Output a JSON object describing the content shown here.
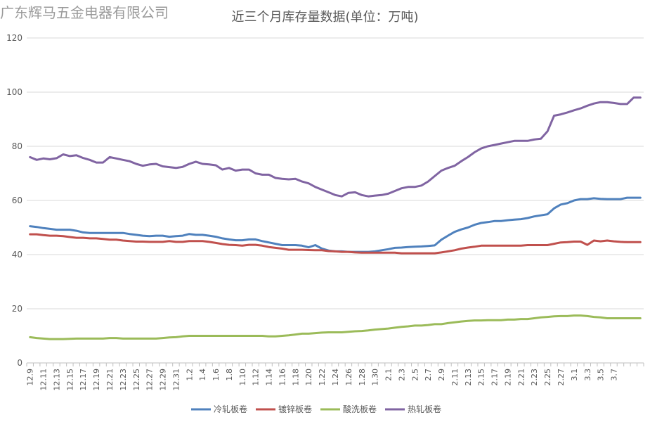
{
  "watermark": "广东辉马五金电器有限公司",
  "chart_data": {
    "type": "line",
    "title": "近三个月库存量数据(单位：万吨)",
    "xlabel": "",
    "ylabel": "",
    "ylim": [
      0,
      120
    ],
    "yticks": [
      0,
      20,
      40,
      60,
      80,
      100,
      120
    ],
    "grid": true,
    "legend": "bottom",
    "x_tick_labels": [
      "12.9",
      "12.11",
      "12.13",
      "12.15",
      "12.17",
      "12.19",
      "12.21",
      "12.23",
      "12.25",
      "12.27",
      "12.29",
      "12.31",
      "1.2",
      "1.4",
      "1.6",
      "1.8",
      "1.10",
      "1.12",
      "1.14",
      "1.16",
      "1.18",
      "1.20",
      "1.22",
      "1.24",
      "1.26",
      "1.28",
      "1.30",
      "2.1",
      "2.3",
      "2.5",
      "2.7",
      "2.9",
      "2.11",
      "2.13",
      "2.15",
      "2.17",
      "2.19",
      "2.21",
      "2.23",
      "2.25",
      "2.27",
      "3.1",
      "3.3",
      "3.5",
      "3.7"
    ],
    "series": [
      {
        "name": "冷轧板卷",
        "color": "#4f81bd",
        "values": [
          50.5,
          50.2,
          49.8,
          49.5,
          49.2,
          49.2,
          49.2,
          48.8,
          48.2,
          48.0,
          48.0,
          48.0,
          48.0,
          48.0,
          48.0,
          47.6,
          47.3,
          47.0,
          46.8,
          47.0,
          47.0,
          46.6,
          46.8,
          47.0,
          47.6,
          47.3,
          47.3,
          47.0,
          46.6,
          46.0,
          45.6,
          45.3,
          45.3,
          45.6,
          45.6,
          45.0,
          44.5,
          44.0,
          43.5,
          43.5,
          43.5,
          43.3,
          42.7,
          43.5,
          42.2,
          41.5,
          41.2,
          41.2,
          41.0,
          41.0,
          41.0,
          41.0,
          41.2,
          41.6,
          42.0,
          42.5,
          42.6,
          42.8,
          42.9,
          43.0,
          43.2,
          43.4,
          45.5,
          47.0,
          48.4,
          49.3,
          50.0,
          51.0,
          51.7,
          52.0,
          52.4,
          52.4,
          52.7,
          52.9,
          53.1,
          53.5,
          54.1,
          54.5,
          54.9,
          57.1,
          58.5,
          59.0,
          60.0,
          60.5,
          60.5,
          60.8,
          60.6,
          60.5,
          60.5,
          60.5,
          61.0,
          61.0,
          61.0
        ]
      },
      {
        "name": "镀锌板卷",
        "color": "#c0504d",
        "values": [
          47.5,
          47.5,
          47.2,
          47.0,
          47.0,
          46.8,
          46.5,
          46.2,
          46.2,
          46.0,
          46.0,
          45.8,
          45.5,
          45.5,
          45.2,
          45.0,
          44.8,
          44.8,
          44.7,
          44.7,
          44.7,
          45.0,
          44.7,
          44.7,
          45.0,
          45.0,
          45.0,
          44.7,
          44.3,
          43.9,
          43.6,
          43.5,
          43.3,
          43.6,
          43.6,
          43.3,
          42.8,
          42.5,
          42.2,
          41.8,
          41.8,
          41.8,
          41.7,
          41.6,
          41.6,
          41.3,
          41.2,
          41.0,
          41.0,
          40.8,
          40.7,
          40.7,
          40.7,
          40.7,
          40.7,
          40.7,
          40.5,
          40.5,
          40.5,
          40.5,
          40.5,
          40.5,
          40.8,
          41.2,
          41.6,
          42.2,
          42.6,
          42.9,
          43.3,
          43.3,
          43.3,
          43.3,
          43.3,
          43.3,
          43.3,
          43.5,
          43.5,
          43.5,
          43.5,
          44.0,
          44.5,
          44.6,
          44.8,
          44.8,
          43.6,
          45.2,
          44.9,
          45.2,
          44.9,
          44.7,
          44.6,
          44.6,
          44.6
        ]
      },
      {
        "name": "酸洗板卷",
        "color": "#9bbb59",
        "values": [
          9.5,
          9.2,
          9.0,
          8.8,
          8.8,
          8.8,
          8.9,
          9.0,
          9.0,
          9.0,
          9.0,
          9.0,
          9.2,
          9.2,
          9.0,
          9.0,
          9.0,
          9.0,
          9.0,
          9.0,
          9.2,
          9.4,
          9.5,
          9.8,
          10.0,
          10.0,
          10.0,
          10.0,
          10.0,
          10.0,
          10.0,
          10.0,
          10.0,
          10.0,
          10.0,
          10.0,
          9.8,
          9.8,
          10.0,
          10.2,
          10.5,
          10.8,
          10.8,
          11.0,
          11.2,
          11.3,
          11.3,
          11.3,
          11.5,
          11.7,
          11.8,
          12.0,
          12.3,
          12.5,
          12.7,
          13.0,
          13.3,
          13.5,
          13.8,
          13.8,
          14.0,
          14.3,
          14.3,
          14.7,
          15.0,
          15.3,
          15.5,
          15.7,
          15.7,
          15.8,
          15.8,
          15.8,
          16.0,
          16.0,
          16.2,
          16.2,
          16.5,
          16.8,
          17.0,
          17.2,
          17.3,
          17.3,
          17.5,
          17.5,
          17.3,
          17.0,
          16.8,
          16.5,
          16.5,
          16.5,
          16.5,
          16.5,
          16.5
        ]
      },
      {
        "name": "热轧板卷",
        "color": "#8064a2",
        "values": [
          76.0,
          75.0,
          75.5,
          75.2,
          75.6,
          77.0,
          76.4,
          76.7,
          75.7,
          75.0,
          74.0,
          74.0,
          76.0,
          75.5,
          75.0,
          74.5,
          73.5,
          72.8,
          73.3,
          73.5,
          72.6,
          72.3,
          72.0,
          72.4,
          73.5,
          74.3,
          73.5,
          73.3,
          73.0,
          71.4,
          72.0,
          71.0,
          71.4,
          71.4,
          70.0,
          69.5,
          69.5,
          68.3,
          68.0,
          67.8,
          68.0,
          67.0,
          66.3,
          65.0,
          64.0,
          63.0,
          62.0,
          61.5,
          62.8,
          63.0,
          62.0,
          61.5,
          61.8,
          62.0,
          62.5,
          63.5,
          64.5,
          65.0,
          65.0,
          65.5,
          67.0,
          69.0,
          71.0,
          72.0,
          72.8,
          74.5,
          76.0,
          77.8,
          79.2,
          80.0,
          80.5,
          81.0,
          81.5,
          82.0,
          82.0,
          82.0,
          82.5,
          82.8,
          85.5,
          91.3,
          91.8,
          92.5,
          93.3,
          94.0,
          95.0,
          95.8,
          96.3,
          96.3,
          96.0,
          95.6,
          95.6,
          98.0,
          98.0
        ]
      }
    ]
  }
}
